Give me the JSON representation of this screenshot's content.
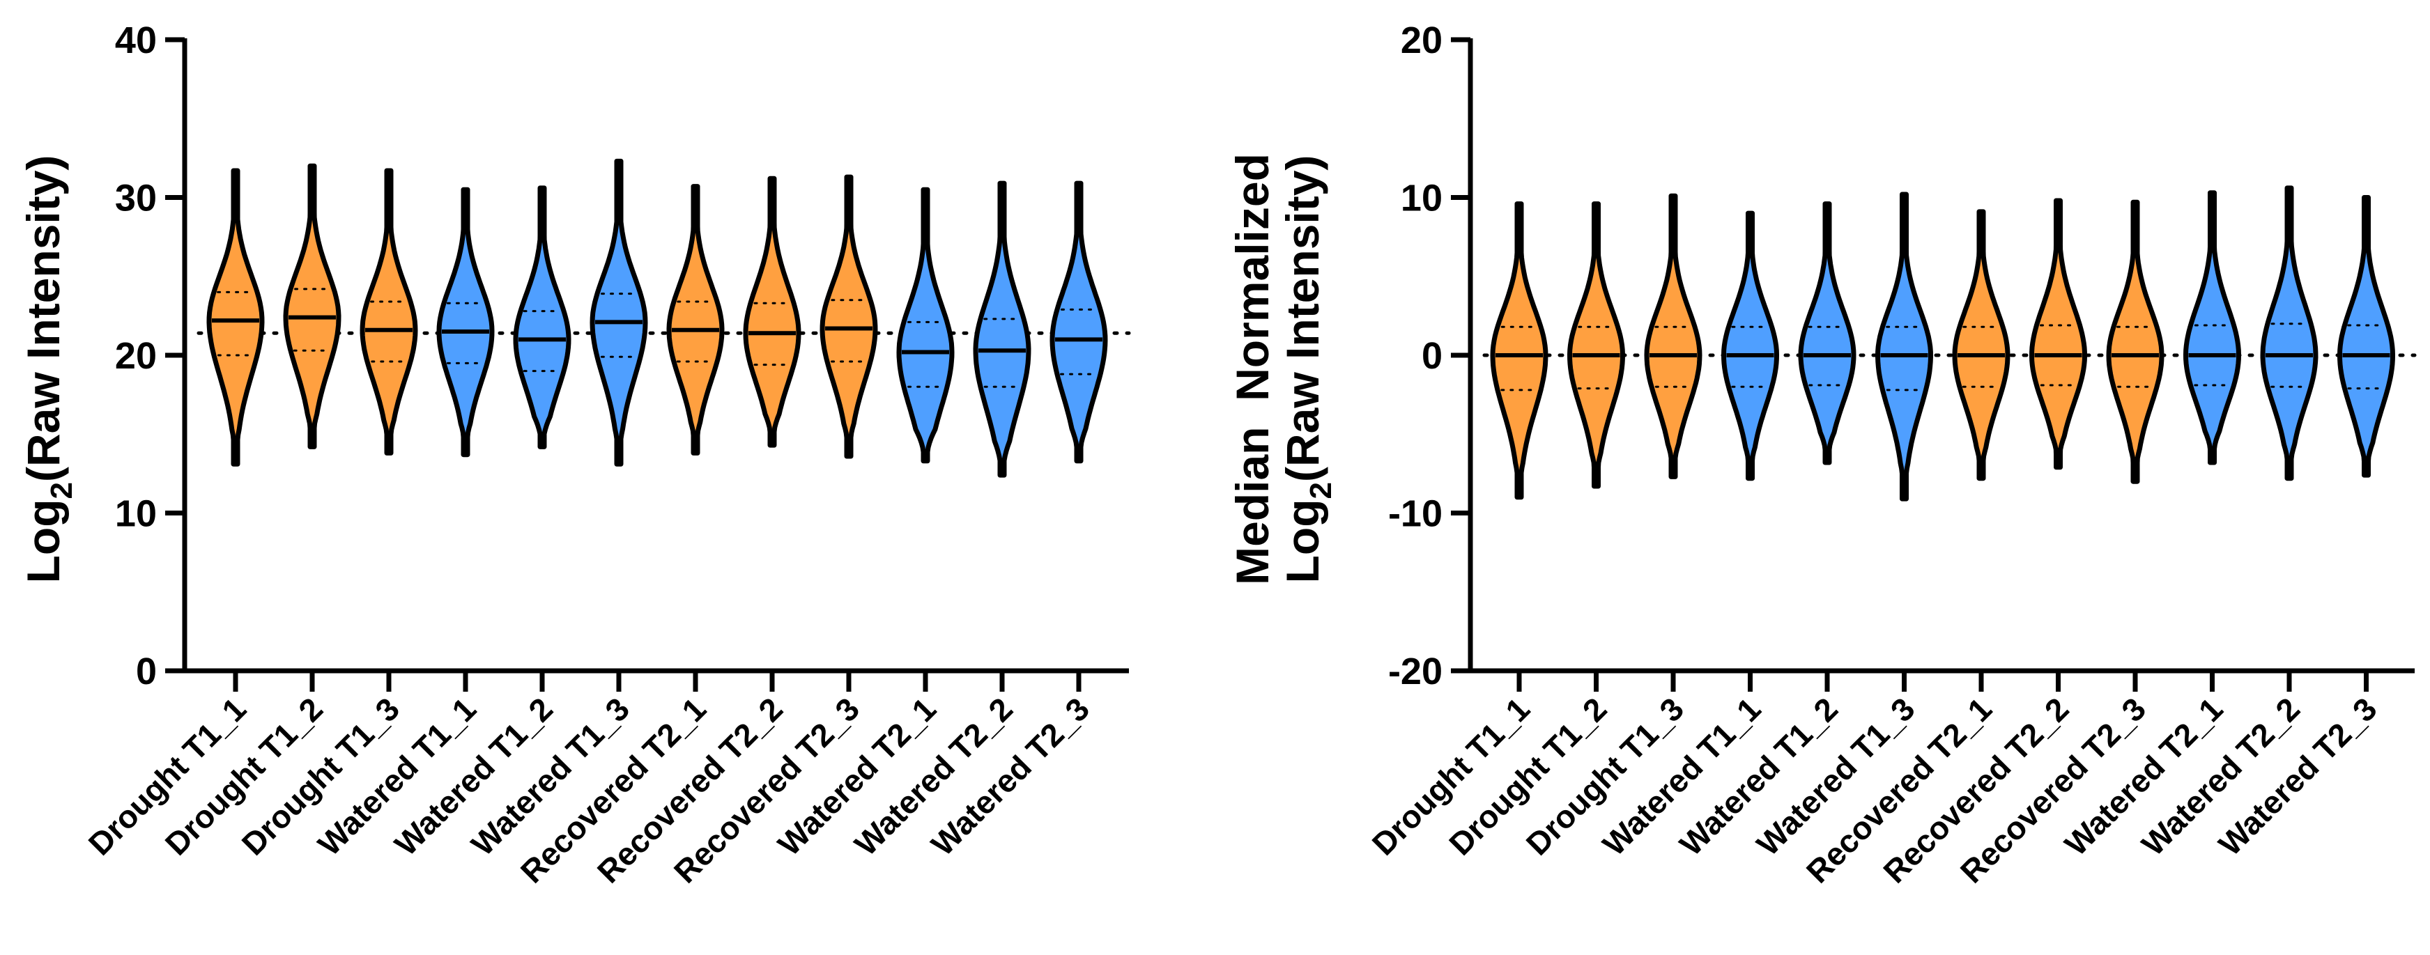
{
  "colors": {
    "drought": "#FFA040",
    "watered": "#4F9FFF",
    "recovered": "#FFA040",
    "outline": "#000000"
  },
  "chart_data": [
    {
      "type": "violin",
      "ylabel": "Log2(Raw Intensity)",
      "ylabel_main": "Log",
      "ylabel_sub": "2",
      "ylabel_rest": "(Raw Intensity)",
      "ylim": [
        0,
        40
      ],
      "yticks": [
        0,
        10,
        20,
        30,
        40
      ],
      "reference_line": 21.4,
      "categories": [
        "Drought T1_1",
        "Drought T1_2",
        "Drought T1_3",
        "Watered T1_1",
        "Watered T1_2",
        "Watered T1_3",
        "Recovered T2_1",
        "Recovered T2_2",
        "Recovered T2_3",
        "Watered T2_1",
        "Watered T2_2",
        "Watered T2_3"
      ],
      "groups": [
        "drought",
        "drought",
        "drought",
        "watered",
        "watered",
        "watered",
        "recovered",
        "recovered",
        "recovered",
        "watered",
        "watered",
        "watered"
      ],
      "min": [
        13.1,
        14.2,
        13.8,
        13.7,
        14.2,
        13.1,
        13.8,
        14.3,
        13.6,
        13.3,
        12.4,
        13.3
      ],
      "q1": [
        20.0,
        20.3,
        19.6,
        19.5,
        19.0,
        19.9,
        19.6,
        19.4,
        19.6,
        18.0,
        18.0,
        18.8
      ],
      "median": [
        22.2,
        22.4,
        21.6,
        21.5,
        21.0,
        22.1,
        21.6,
        21.4,
        21.7,
        20.2,
        20.3,
        21.0
      ],
      "q3": [
        24.0,
        24.2,
        23.4,
        23.3,
        22.8,
        23.9,
        23.4,
        23.3,
        23.5,
        22.1,
        22.3,
        22.9
      ],
      "max": [
        31.7,
        32.0,
        31.7,
        30.5,
        30.6,
        32.3,
        30.7,
        31.2,
        31.3,
        30.5,
        30.9,
        30.9
      ]
    },
    {
      "type": "violin",
      "ylabel_line1": "Median  Normalized",
      "ylabel_main": "Log",
      "ylabel_sub": "2",
      "ylabel_rest": "(Raw Intensity)",
      "ylim": [
        -20,
        20
      ],
      "yticks": [
        -20,
        -10,
        0,
        10,
        20
      ],
      "reference_line": 0,
      "categories": [
        "Drought T1_1",
        "Drought T1_2",
        "Drought T1_3",
        "Watered T1_1",
        "Watered T1_2",
        "Watered T1_3",
        "Recovered T2_1",
        "Recovered T2_2",
        "Recovered T2_3",
        "Watered T2_1",
        "Watered T2_2",
        "Watered T2_3"
      ],
      "groups": [
        "drought",
        "drought",
        "drought",
        "watered",
        "watered",
        "watered",
        "recovered",
        "recovered",
        "recovered",
        "watered",
        "watered",
        "watered"
      ],
      "min": [
        -9.0,
        -8.3,
        -7.7,
        -7.8,
        -6.8,
        -9.1,
        -7.8,
        -7.1,
        -8.0,
        -6.8,
        -7.8,
        -7.6
      ],
      "q1": [
        -2.2,
        -2.1,
        -2.0,
        -2.0,
        -1.9,
        -2.2,
        -2.0,
        -1.9,
        -2.0,
        -1.9,
        -2.0,
        -2.1
      ],
      "median": [
        0,
        0,
        0,
        0,
        0,
        0,
        0,
        0,
        0,
        0,
        0,
        0
      ],
      "q3": [
        1.8,
        1.8,
        1.8,
        1.8,
        1.8,
        1.8,
        1.8,
        1.9,
        1.8,
        1.9,
        2.0,
        1.9
      ],
      "max": [
        9.6,
        9.6,
        10.1,
        9.0,
        9.6,
        10.2,
        9.1,
        9.8,
        9.7,
        10.3,
        10.6,
        10.0
      ]
    }
  ]
}
